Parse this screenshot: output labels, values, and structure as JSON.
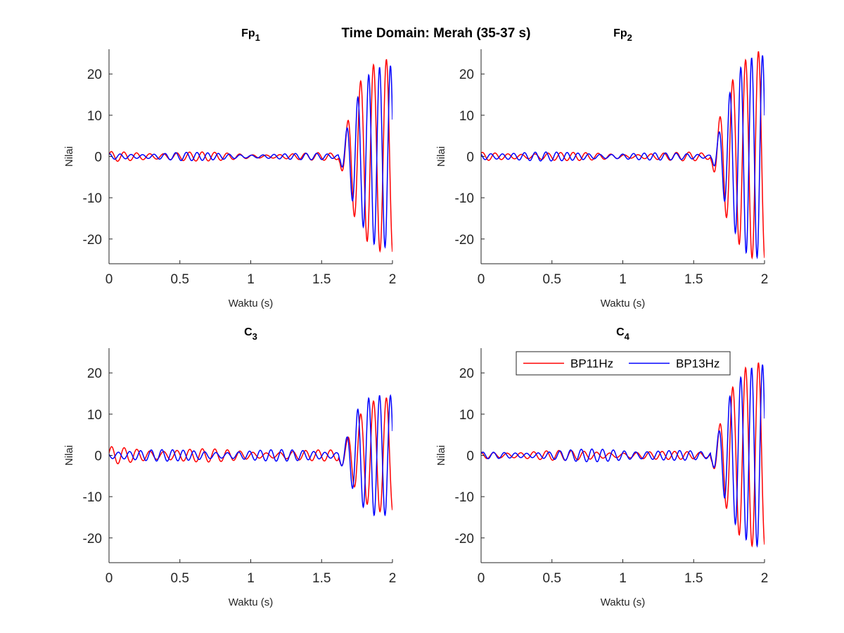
{
  "figure": {
    "suptitle": "Time Domain: Merah (35-37 s)"
  },
  "chart_data": [
    {
      "type": "line",
      "title_main": "Fp",
      "title_sub": "1",
      "xlabel": "Waktu (s)",
      "ylabel": "Nilai",
      "xlim": [
        0,
        2
      ],
      "ylim": [
        -26,
        26
      ],
      "xticks": [
        0,
        0.5,
        1,
        1.5,
        2
      ],
      "xtick_labels": [
        "0",
        "0.5",
        "1",
        "1.5",
        "2"
      ],
      "yticks": [
        -20,
        -10,
        0,
        10,
        20
      ],
      "ytick_labels": [
        "-20",
        "-10",
        "0",
        "10",
        "20"
      ],
      "series": [
        {
          "name": "BP11Hz",
          "color": "#ff0000",
          "freq": 11,
          "phase": 0.3,
          "pre": [
            [
              0,
              0.9
            ],
            [
              0.5,
              1.0
            ],
            [
              1.0,
              0.5
            ],
            [
              1.5,
              0.7
            ],
            [
              1.6,
              0.6
            ]
          ],
          "post": [
            [
              1.63,
              2
            ],
            [
              1.68,
              8
            ],
            [
              1.75,
              17
            ],
            [
              1.85,
              22
            ],
            [
              1.95,
              23.5
            ],
            [
              2.0,
              23.5
            ]
          ]
        },
        {
          "name": "BP13Hz",
          "color": "#0000ff",
          "freq": 13,
          "phase": 1.1,
          "pre": [
            [
              0,
              0.6
            ],
            [
              0.5,
              0.8
            ],
            [
              1.0,
              0.5
            ],
            [
              1.5,
              0.6
            ],
            [
              1.6,
              0.4
            ]
          ],
          "post": [
            [
              1.63,
              1
            ],
            [
              1.68,
              7
            ],
            [
              1.75,
              14
            ],
            [
              1.85,
              21
            ],
            [
              1.95,
              22
            ],
            [
              2.0,
              22
            ]
          ]
        }
      ]
    },
    {
      "type": "line",
      "title_main": "Fp",
      "title_sub": "2",
      "xlabel": "Waktu (s)",
      "ylabel": "Nilai",
      "xlim": [
        0,
        2
      ],
      "ylim": [
        -26,
        26
      ],
      "xticks": [
        0,
        0.5,
        1,
        1.5,
        2
      ],
      "xtick_labels": [
        "0",
        "0.5",
        "1",
        "1.5",
        "2"
      ],
      "yticks": [
        -20,
        -10,
        0,
        10,
        20
      ],
      "ytick_labels": [
        "-20",
        "-10",
        "0",
        "10",
        "20"
      ],
      "series": [
        {
          "name": "BP11Hz",
          "color": "#ff0000",
          "freq": 11,
          "phase": 0.7,
          "pre": [
            [
              0,
              0.8
            ],
            [
              0.5,
              0.8
            ],
            [
              1.0,
              0.6
            ],
            [
              1.5,
              0.8
            ],
            [
              1.6,
              0.6
            ]
          ],
          "post": [
            [
              1.63,
              2
            ],
            [
              1.68,
              9
            ],
            [
              1.75,
              17
            ],
            [
              1.85,
              23
            ],
            [
              1.95,
              25.5
            ],
            [
              2.0,
              25
            ]
          ]
        },
        {
          "name": "BP13Hz",
          "color": "#0000ff",
          "freq": 13,
          "phase": 2.0,
          "pre": [
            [
              0,
              1.0
            ],
            [
              0.5,
              0.8
            ],
            [
              1.0,
              0.7
            ],
            [
              1.5,
              0.6
            ],
            [
              1.6,
              0.5
            ]
          ],
          "post": [
            [
              1.63,
              1
            ],
            [
              1.68,
              6
            ],
            [
              1.75,
              15
            ],
            [
              1.85,
              23
            ],
            [
              1.95,
              24.5
            ],
            [
              2.0,
              24.5
            ]
          ]
        }
      ]
    },
    {
      "type": "line",
      "title_main": "C",
      "title_sub": "3",
      "xlabel": "Waktu (s)",
      "ylabel": "Nilai",
      "xlim": [
        0,
        2
      ],
      "ylim": [
        -26,
        26
      ],
      "xticks": [
        0,
        0.5,
        1,
        1.5,
        2
      ],
      "xtick_labels": [
        "0",
        "0.5",
        "1",
        "1.5",
        "2"
      ],
      "yticks": [
        -20,
        -10,
        0,
        10,
        20
      ],
      "ytick_labels": [
        "-20",
        "-10",
        "0",
        "10",
        "20"
      ],
      "series": [
        {
          "name": "BP11Hz",
          "color": "#ff0000",
          "freq": 11,
          "phase": 0.2,
          "pre": [
            [
              0,
              1.6
            ],
            [
              0.5,
              1.4
            ],
            [
              1.0,
              0.9
            ],
            [
              1.5,
              1.0
            ],
            [
              1.6,
              1.0
            ]
          ],
          "post": [
            [
              1.63,
              2
            ],
            [
              1.68,
              4
            ],
            [
              1.75,
              9
            ],
            [
              1.85,
              13
            ],
            [
              1.95,
              14
            ],
            [
              2.0,
              13.5
            ]
          ]
        },
        {
          "name": "BP13Hz",
          "color": "#0000ff",
          "freq": 13,
          "phase": 2.6,
          "pre": [
            [
              0,
              1.2
            ],
            [
              0.5,
              1.0
            ],
            [
              1.0,
              1.0
            ],
            [
              1.5,
              1.1
            ],
            [
              1.6,
              1.0
            ]
          ],
          "post": [
            [
              1.63,
              2
            ],
            [
              1.68,
              4.5
            ],
            [
              1.75,
              11
            ],
            [
              1.85,
              14.5
            ],
            [
              1.95,
              14.5
            ],
            [
              2.0,
              14.5
            ]
          ]
        }
      ]
    },
    {
      "type": "line",
      "title_main": "C",
      "title_sub": "4",
      "xlabel": "Waktu (s)",
      "ylabel": "Nilai",
      "xlim": [
        0,
        2
      ],
      "ylim": [
        -26,
        26
      ],
      "xticks": [
        0,
        0.5,
        1,
        1.5,
        2
      ],
      "xtick_labels": [
        "0",
        "0.5",
        "1",
        "1.5",
        "2"
      ],
      "yticks": [
        -20,
        -10,
        0,
        10,
        20
      ],
      "ytick_labels": [
        "-20",
        "-10",
        "0",
        "10",
        "20"
      ],
      "legend": {
        "location": "top-right",
        "entries": [
          "BP11Hz",
          "BP13Hz"
        ]
      },
      "series": [
        {
          "name": "BP11Hz",
          "color": "#ff0000",
          "freq": 11,
          "phase": 1.4,
          "pre": [
            [
              0,
              0.8
            ],
            [
              0.5,
              0.9
            ],
            [
              1.0,
              0.8
            ],
            [
              1.5,
              0.7
            ],
            [
              1.6,
              0.6
            ]
          ],
          "post": [
            [
              1.63,
              2
            ],
            [
              1.68,
              7
            ],
            [
              1.75,
              15
            ],
            [
              1.85,
              21
            ],
            [
              1.95,
              22.5
            ],
            [
              2.0,
              22
            ]
          ]
        },
        {
          "name": "BP13Hz",
          "color": "#0000ff",
          "freq": 13,
          "phase": 0.4,
          "pre": [
            [
              0,
              0.6
            ],
            [
              0.5,
              0.9
            ],
            [
              1.0,
              1.4
            ],
            [
              1.5,
              0.8
            ],
            [
              1.6,
              0.6
            ]
          ],
          "post": [
            [
              1.63,
              2
            ],
            [
              1.68,
              6
            ],
            [
              1.75,
              14
            ],
            [
              1.85,
              20
            ],
            [
              1.95,
              22
            ],
            [
              2.0,
              22
            ]
          ]
        }
      ]
    }
  ]
}
